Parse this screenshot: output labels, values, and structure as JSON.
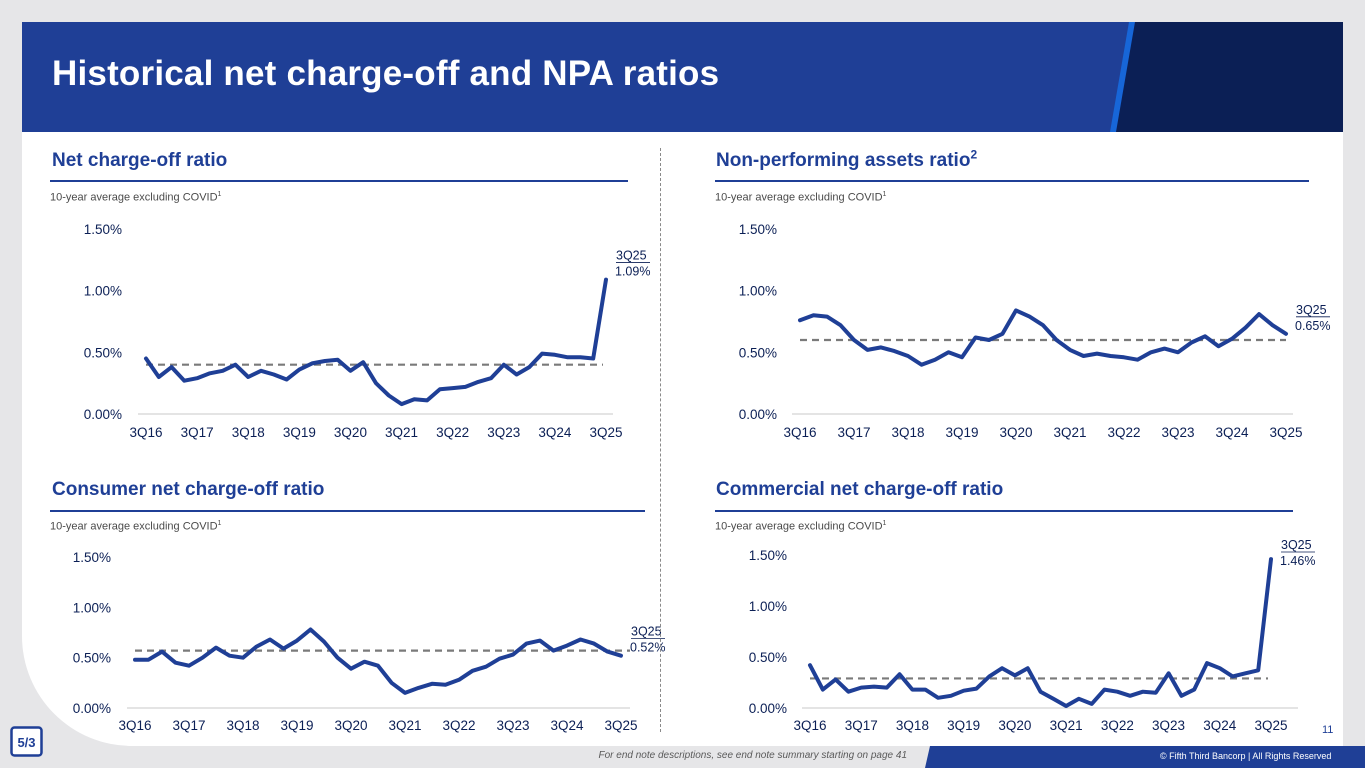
{
  "title": "Historical net charge-off and NPA ratios",
  "colors": {
    "brand_blue": "#1f3f96",
    "navy": "#0b1f55",
    "bright_blue": "#1766d8",
    "avg_line": "#7a7a7a"
  },
  "footer": {
    "note": "For end note descriptions, see end note summary starting on page 41",
    "copyright": "© Fifth Third Bancorp | All Rights Reserved",
    "page_number": "11"
  },
  "logo": {
    "text": "5/3",
    "icon": "fifth-third-logo-icon"
  },
  "chart_data": [
    {
      "type": "line",
      "title": "Net charge-off ratio",
      "subtitle": "10-year average excluding COVID",
      "subtitle_note": "1",
      "x_ticks": [
        "3Q16",
        "3Q17",
        "3Q18",
        "3Q19",
        "3Q20",
        "3Q21",
        "3Q22",
        "3Q23",
        "3Q24",
        "3Q25"
      ],
      "y_ticks": [
        "0.00%",
        "0.50%",
        "1.00%",
        "1.50%"
      ],
      "ylim": [
        0,
        1.5
      ],
      "average": 0.4,
      "callout": {
        "period": "3Q25",
        "value": "1.09%"
      },
      "series": [
        {
          "values": [
            0.45,
            0.3,
            0.38,
            0.27,
            0.29,
            0.33,
            0.35,
            0.4,
            0.3,
            0.35,
            0.32,
            0.28,
            0.36,
            0.41,
            0.43,
            0.44,
            0.35,
            0.42,
            0.25,
            0.15,
            0.08,
            0.12,
            0.11,
            0.2,
            0.21,
            0.22,
            0.26,
            0.29,
            0.4,
            0.32,
            0.38,
            0.49,
            0.48,
            0.46,
            0.46,
            0.45,
            1.09
          ]
        }
      ]
    },
    {
      "type": "line",
      "title": "Non-performing assets ratio",
      "title_note": "2",
      "subtitle": "10-year average excluding COVID",
      "subtitle_note": "1",
      "x_ticks": [
        "3Q16",
        "3Q17",
        "3Q18",
        "3Q19",
        "3Q20",
        "3Q21",
        "3Q22",
        "3Q23",
        "3Q24",
        "3Q25"
      ],
      "y_ticks": [
        "0.00%",
        "0.50%",
        "1.00%",
        "1.50%"
      ],
      "ylim": [
        0,
        1.5
      ],
      "average": 0.6,
      "callout": {
        "period": "3Q25",
        "value": "0.65%"
      },
      "series": [
        {
          "values": [
            0.76,
            0.8,
            0.79,
            0.72,
            0.6,
            0.52,
            0.54,
            0.51,
            0.47,
            0.4,
            0.44,
            0.5,
            0.46,
            0.62,
            0.6,
            0.65,
            0.84,
            0.79,
            0.72,
            0.6,
            0.52,
            0.47,
            0.49,
            0.47,
            0.46,
            0.44,
            0.5,
            0.53,
            0.5,
            0.58,
            0.63,
            0.55,
            0.61,
            0.7,
            0.81,
            0.72,
            0.65
          ]
        }
      ]
    },
    {
      "type": "line",
      "title": "Consumer net charge-off ratio",
      "subtitle": "10-year average excluding COVID",
      "subtitle_note": "1",
      "x_ticks": [
        "3Q16",
        "3Q17",
        "3Q18",
        "3Q19",
        "3Q20",
        "3Q21",
        "3Q22",
        "3Q23",
        "3Q24",
        "3Q25"
      ],
      "y_ticks": [
        "0.00%",
        "0.50%",
        "1.00%",
        "1.50%"
      ],
      "ylim": [
        0,
        1.5
      ],
      "average": 0.57,
      "callout": {
        "period": "3Q25",
        "value": "0.52%"
      },
      "series": [
        {
          "values": [
            0.48,
            0.48,
            0.56,
            0.45,
            0.42,
            0.5,
            0.6,
            0.52,
            0.5,
            0.61,
            0.68,
            0.59,
            0.67,
            0.78,
            0.66,
            0.5,
            0.39,
            0.46,
            0.42,
            0.25,
            0.15,
            0.2,
            0.24,
            0.23,
            0.28,
            0.37,
            0.41,
            0.49,
            0.53,
            0.64,
            0.67,
            0.57,
            0.62,
            0.68,
            0.64,
            0.56,
            0.52
          ]
        }
      ]
    },
    {
      "type": "line",
      "title": "Commercial net charge-off ratio",
      "subtitle": "10-year average excluding COVID",
      "subtitle_note": "1",
      "x_ticks": [
        "3Q16",
        "3Q17",
        "3Q18",
        "3Q19",
        "3Q20",
        "3Q21",
        "3Q22",
        "3Q23",
        "3Q24",
        "3Q25"
      ],
      "y_ticks": [
        "0.00%",
        "0.50%",
        "1.00%",
        "1.50%"
      ],
      "ylim": [
        0,
        1.5
      ],
      "average": 0.29,
      "callout": {
        "period": "3Q25",
        "value": "1.46%"
      },
      "series": [
        {
          "values": [
            0.42,
            0.18,
            0.28,
            0.16,
            0.2,
            0.21,
            0.2,
            0.33,
            0.18,
            0.18,
            0.1,
            0.12,
            0.17,
            0.19,
            0.31,
            0.39,
            0.32,
            0.39,
            0.16,
            0.09,
            0.02,
            0.09,
            0.04,
            0.18,
            0.16,
            0.12,
            0.16,
            0.15,
            0.34,
            0.12,
            0.18,
            0.44,
            0.39,
            0.31,
            0.34,
            0.37,
            1.46
          ]
        }
      ]
    }
  ]
}
